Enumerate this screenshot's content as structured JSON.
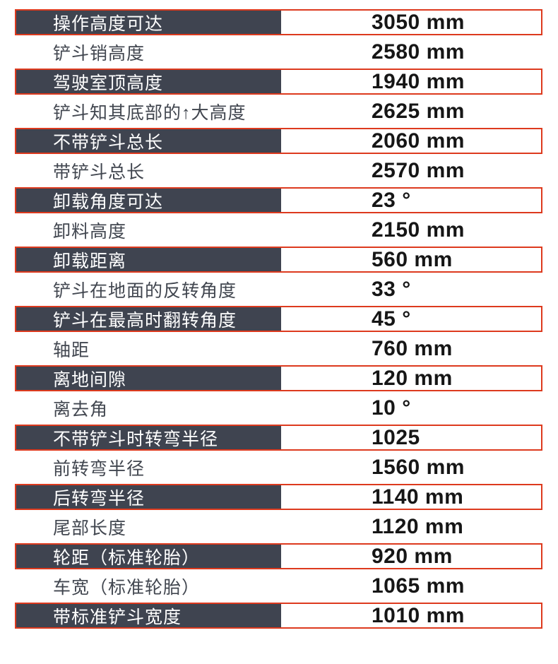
{
  "colors": {
    "accent_red": "#dd3a1e",
    "dark_row_bg": "#3f4450",
    "dark_row_label_text": "#ffffff",
    "light_row_label_text": "#41464f",
    "value_text": "#161616",
    "page_bg": "#ffffff"
  },
  "table": {
    "rows": [
      {
        "label": "操作高度可达",
        "value": "3050 mm"
      },
      {
        "label": "铲斗销高度",
        "value": "2580 mm"
      },
      {
        "label": "驾驶室顶高度",
        "value": "1940 mm"
      },
      {
        "label": "铲斗知其底部的↑大高度",
        "value": "2625 mm"
      },
      {
        "label": "不带铲斗总长",
        "value": "2060 mm"
      },
      {
        "label": "带铲斗总长",
        "value": "2570 mm"
      },
      {
        "label": "卸载角度可达",
        "value": "23 °"
      },
      {
        "label": "卸料高度",
        "value": "2150 mm"
      },
      {
        "label": "卸载距离",
        "value": "560 mm"
      },
      {
        "label": "铲斗在地面的反转角度",
        "value": "33 °"
      },
      {
        "label": "铲斗在最高时翻转角度",
        "value": "45 °"
      },
      {
        "label": "轴距",
        "value": "760 mm"
      },
      {
        "label": "离地间隙",
        "value": "120 mm"
      },
      {
        "label": "离去角",
        "value": "10 °"
      },
      {
        "label": "不带铲斗时转弯半径",
        "value": "1025"
      },
      {
        "label": "前转弯半径",
        "value": "1560 mm"
      },
      {
        "label": "后转弯半径",
        "value": "1140 mm"
      },
      {
        "label": "尾部长度",
        "value": "1120 mm"
      },
      {
        "label": "轮距（标准轮胎）",
        "value": "920 mm"
      },
      {
        "label": "车宽（标准轮胎）",
        "value": "1065 mm"
      },
      {
        "label": "带标准铲斗宽度",
        "value": "1010 mm"
      }
    ]
  }
}
